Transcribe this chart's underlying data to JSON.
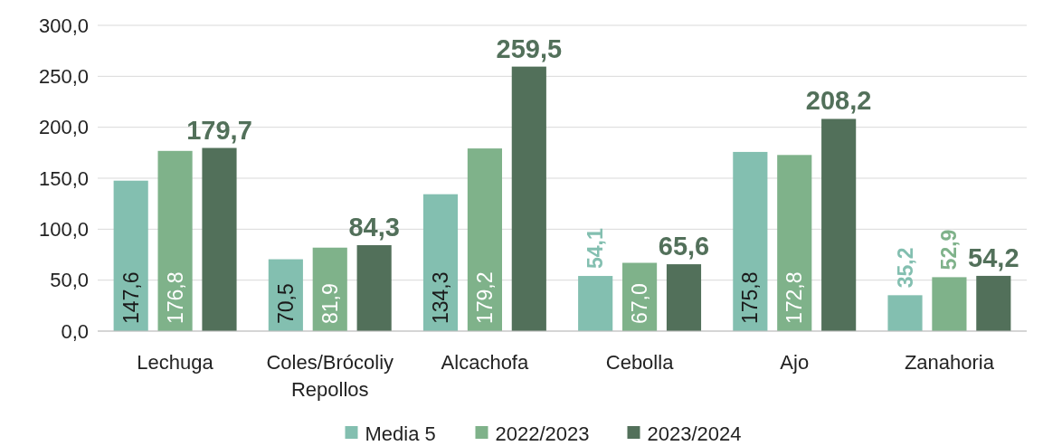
{
  "chart_data": {
    "type": "bar",
    "categories": [
      "Lechuga",
      "Coles/Brócoliy Repollos",
      "Alcachofa",
      "Cebolla",
      "Ajo",
      "Zanahoria"
    ],
    "series": [
      {
        "name": "Media 5",
        "color": "#83bfb0",
        "values": [
          147.6,
          70.5,
          134.3,
          54.1,
          175.8,
          35.2
        ],
        "value_labels": [
          "147,6",
          "70,5",
          "134,3",
          "54,1",
          "175,8",
          "35,2"
        ]
      },
      {
        "name": "2022/2023",
        "color": "#7fb28a",
        "values": [
          176.8,
          81.9,
          179.2,
          67.0,
          172.8,
          52.9
        ],
        "value_labels": [
          "176,8",
          "81,9",
          "179,2",
          "67,0",
          "172,8",
          "52,9"
        ]
      },
      {
        "name": "2023/2024",
        "color": "#52705a",
        "values": [
          179.7,
          84.3,
          259.5,
          65.6,
          208.2,
          54.2
        ],
        "value_labels": [
          "179,7",
          "84,3",
          "259,5",
          "65,6",
          "208,2",
          "54,2"
        ]
      }
    ],
    "ylim": [
      0,
      300
    ],
    "yticks": [
      {
        "value": 0,
        "label": "0,0"
      },
      {
        "value": 50,
        "label": "50,0"
      },
      {
        "value": 100,
        "label": "100,0"
      },
      {
        "value": 150,
        "label": "150,0"
      },
      {
        "value": 200,
        "label": "200,0"
      },
      {
        "value": 250,
        "label": "250,0"
      },
      {
        "value": 300,
        "label": "300,0"
      }
    ],
    "grid": "y",
    "legend": "bottom"
  }
}
